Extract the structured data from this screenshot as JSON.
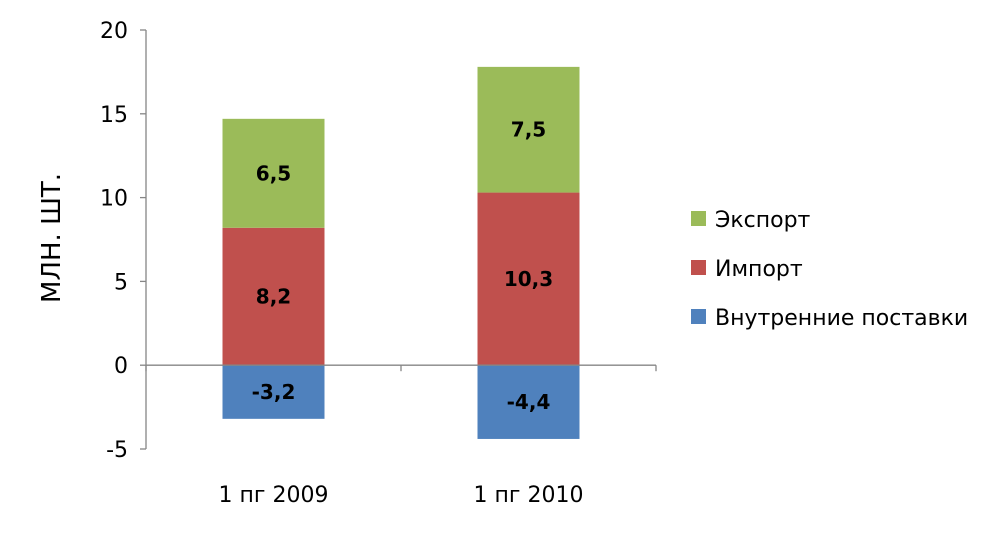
{
  "chart_data": {
    "type": "bar",
    "stacked": true,
    "categories": [
      "1 пг 2009",
      "1 пг 2010"
    ],
    "series": [
      {
        "name": "Внутренние поставки",
        "values": [
          -3.2,
          -4.4
        ],
        "labels": [
          "-3,2",
          "-4,4"
        ],
        "color": "#4F81BD"
      },
      {
        "name": "Импорт",
        "values": [
          8.2,
          10.3
        ],
        "labels": [
          "8,2",
          "10,3"
        ],
        "color": "#C0504D"
      },
      {
        "name": "Экспорт",
        "values": [
          6.5,
          7.5
        ],
        "labels": [
          "6,5",
          "7,5"
        ],
        "color": "#9BBB59"
      }
    ],
    "ylabel": "МЛН. ШТ.",
    "xlabel": "",
    "ylim": [
      -5,
      20
    ],
    "yticks": [
      -5,
      0,
      5,
      10,
      15,
      20
    ],
    "grid": false,
    "legend_position": "right",
    "legend_order": [
      "Экспорт",
      "Импорт",
      "Внутренние поставки"
    ]
  }
}
